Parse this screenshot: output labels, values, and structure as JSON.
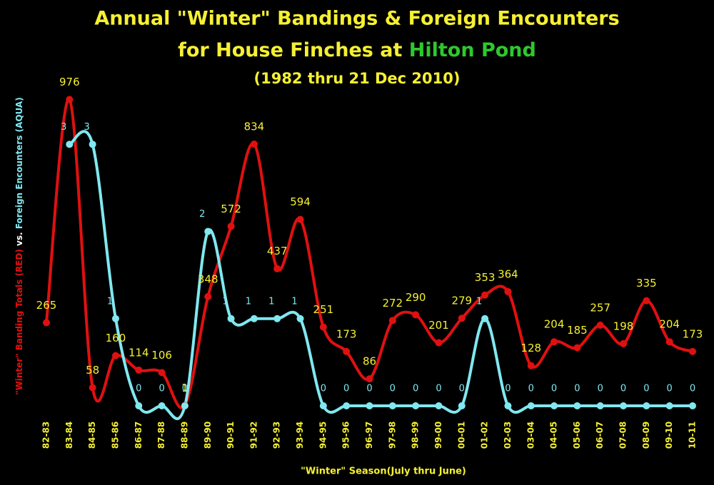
{
  "chart_data": {
    "type": "line",
    "title": "Annual \"Winter\" Bandings & Foreign Encounters",
    "title_line2": "for House Finches at ",
    "title_highlight": "Hilton Pond",
    "subtitle": "(1982 thru 21 Dec 2010)",
    "x_label": "\"Winter\" Season(July thru June)",
    "y_label": "\"Winter\" Banding Totals (RED)",
    "y_label_join": " vs. ",
    "y2_label": "Foreign Encounters (AQUA)",
    "categories": [
      "82-83",
      "83-84",
      "84-85",
      "85-86",
      "86-87",
      "87-88",
      "88-89",
      "89-90",
      "90-91",
      "91-92",
      "92-93",
      "93-94",
      "94-95",
      "95-96",
      "96-97",
      "97-98",
      "98-99",
      "99-00",
      "00-01",
      "01-02",
      "02-03",
      "03-04",
      "04-05",
      "05-06",
      "06-07",
      "07-08",
      "08-09",
      "09-10",
      "10-11"
    ],
    "series": [
      {
        "name": "\"Winter\" Banding Totals",
        "color": "#e01010",
        "label_color": "#f5f032",
        "values": [
          265,
          976,
          58,
          160,
          114,
          106,
          1,
          348,
          572,
          834,
          437,
          594,
          251,
          173,
          86,
          272,
          290,
          201,
          279,
          353,
          364,
          128,
          204,
          185,
          257,
          198,
          335,
          204,
          173
        ]
      },
      {
        "name": "Foreign Encounters",
        "color": "#80e8f0",
        "label_color": "#80e8f0",
        "axis": "y2",
        "values": [
          null,
          3,
          3,
          1,
          0,
          0,
          0,
          2,
          1,
          1,
          1,
          1,
          0,
          0,
          0,
          0,
          0,
          0,
          0,
          1,
          0,
          0,
          0,
          0,
          0,
          0,
          0,
          0,
          0
        ]
      }
    ],
    "ylim": [
      0,
      1000
    ],
    "y2lim": [
      0,
      3.6
    ]
  }
}
